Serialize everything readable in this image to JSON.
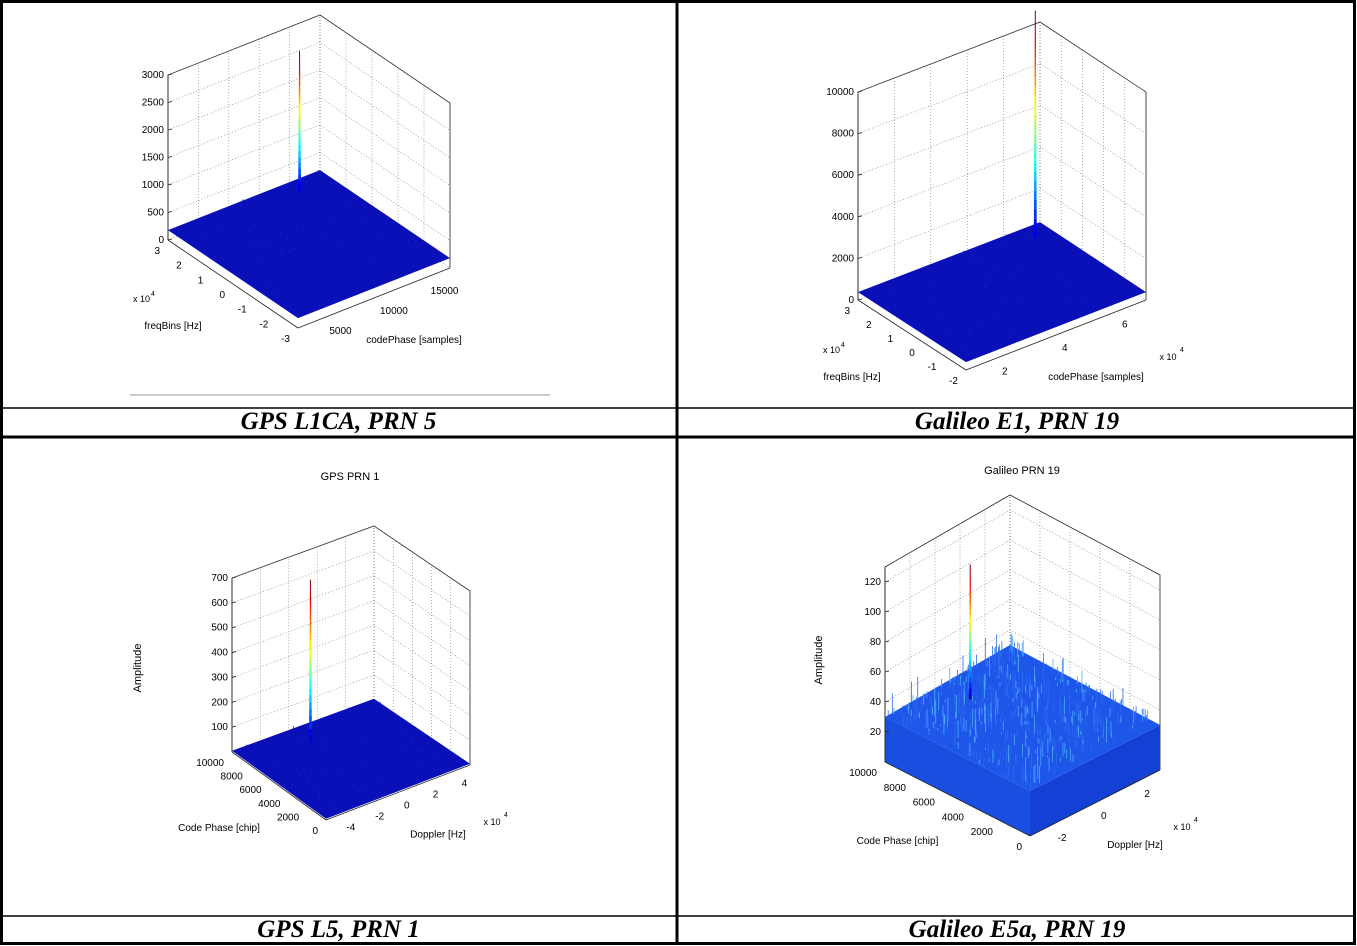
{
  "chart_data": [
    {
      "type": "surface3d",
      "caption": "GPS L1CA, PRN 5",
      "title": "",
      "z_ticks": [
        "0",
        "500",
        "1000",
        "1500",
        "2000",
        "2500",
        "3000"
      ],
      "z_range": [
        0,
        3000
      ],
      "left_axis": {
        "label": "freqBins [Hz]",
        "ticks": [
          "3",
          "2",
          "1",
          "0",
          "-1",
          "-2",
          "-3"
        ],
        "multiplier": "x 10",
        "exponent": "4"
      },
      "right_axis": {
        "label": "codePhase [samples]",
        "ticks": [
          "5000",
          "10000",
          "15000"
        ],
        "multiplier": "",
        "exponent": ""
      },
      "floor_level": 180,
      "peak_value": 2750,
      "floor_color": "#0a10b8",
      "noise": "low"
    },
    {
      "type": "surface3d",
      "caption": "Galileo E1, PRN 19",
      "title": "",
      "z_ticks": [
        "0",
        "2000",
        "4000",
        "6000",
        "8000",
        "10000"
      ],
      "z_range": [
        0,
        10000
      ],
      "left_axis": {
        "label": "freqBins [Hz]",
        "ticks": [
          "3",
          "2",
          "1",
          "0",
          "-1",
          "-2"
        ],
        "multiplier": "x 10",
        "exponent": "4"
      },
      "right_axis": {
        "label": "codePhase [samples]",
        "ticks": [
          "2",
          "4",
          "6"
        ],
        "multiplier": "x 10",
        "exponent": "4"
      },
      "floor_level": 380,
      "peak_value": 11300,
      "floor_color": "#0a10b8",
      "noise": "low"
    },
    {
      "type": "surface3d",
      "caption": "GPS L5, PRN 1",
      "title": "GPS PRN 1",
      "z_label": "Amplitude",
      "z_ticks": [
        "100",
        "200",
        "300",
        "400",
        "500",
        "600",
        "700"
      ],
      "z_range": [
        0,
        700
      ],
      "left_axis": {
        "label": "Code Phase [chip]",
        "ticks": [
          "10000",
          "8000",
          "6000",
          "4000",
          "2000",
          "0"
        ],
        "multiplier": "",
        "exponent": ""
      },
      "right_axis": {
        "label": "Doppler [Hz]",
        "ticks": [
          "-4",
          "-2",
          "0",
          "2",
          "4"
        ],
        "multiplier": "x 10",
        "exponent": "4"
      },
      "floor_level": 5,
      "peak_value": 660,
      "floor_color": "#0a10b8",
      "noise": "low"
    },
    {
      "type": "surface3d",
      "caption": "Galileo E5a, PRN 19",
      "title": "Galileo PRN 19",
      "z_label": "Amplitude",
      "z_ticks": [
        "20",
        "40",
        "60",
        "80",
        "100",
        "120"
      ],
      "z_range": [
        0,
        130
      ],
      "left_axis": {
        "label": "Code Phase [chip]",
        "ticks": [
          "10000",
          "8000",
          "6000",
          "4000",
          "2000",
          "0"
        ],
        "multiplier": "",
        "exponent": ""
      },
      "right_axis": {
        "label": "Doppler [Hz]",
        "ticks": [
          "-2",
          "0",
          "2"
        ],
        "multiplier": "x 10",
        "exponent": "4"
      },
      "floor_level": 30,
      "peak_value": 120,
      "floor_color": "#1f56ea",
      "noise": "high"
    }
  ]
}
